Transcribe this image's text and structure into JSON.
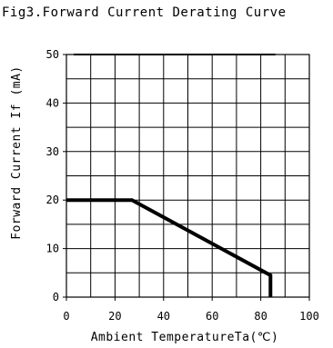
{
  "chart_data": {
    "type": "line",
    "title": "Fig3.Forward Current Derating Curve",
    "xlabel": "Ambient TemperatureTa(℃)",
    "ylabel": "Forward Current If (mA)",
    "xlim": [
      0,
      100
    ],
    "ylim": [
      0,
      50
    ],
    "x_ticks": [
      "0",
      "20",
      "40",
      "60",
      "80",
      "100"
    ],
    "y_ticks": [
      "0",
      "10",
      "20",
      "30",
      "40",
      "50"
    ],
    "grid": true,
    "series": [
      {
        "x": [
          0,
          27,
          84,
          84
        ],
        "y": [
          20,
          20,
          4.5,
          0
        ],
        "color": "#000000"
      }
    ]
  }
}
